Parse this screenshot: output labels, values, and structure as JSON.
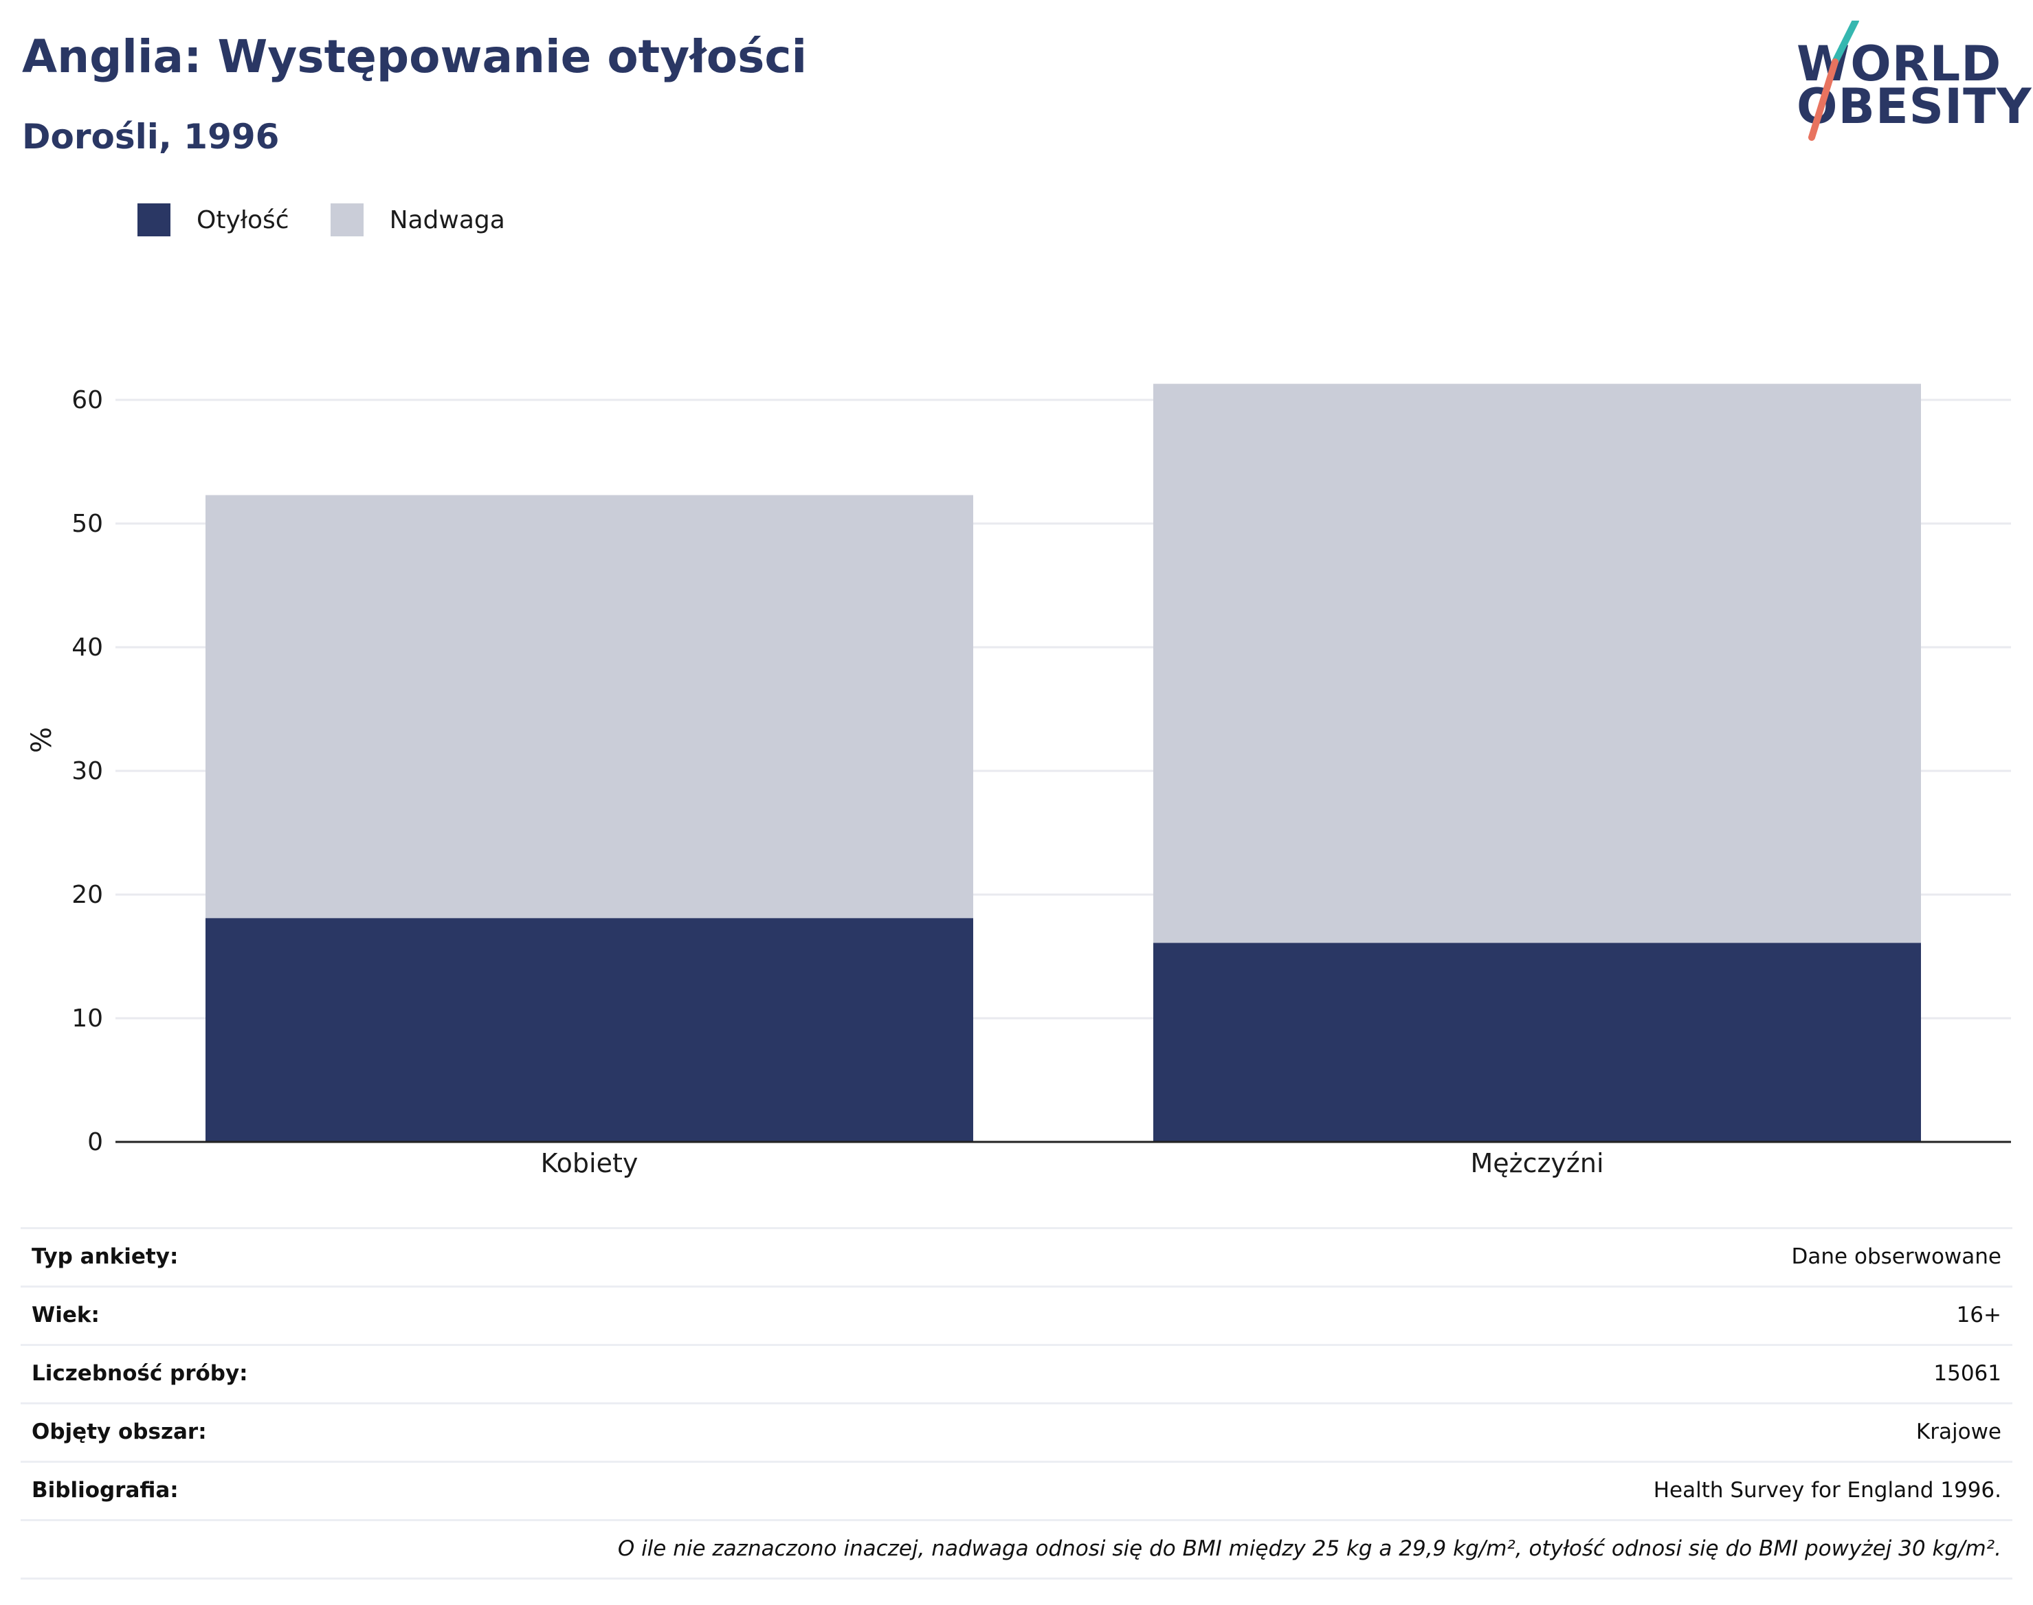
{
  "header": {
    "title": "Anglia: Występowanie otyłości",
    "subtitle": "Dorośli, 1996"
  },
  "logo": {
    "line1": "WORLD",
    "line2": "OBESITY"
  },
  "colors": {
    "obesity": "#2a3764",
    "overweight": "#cacdd8",
    "title": "#2a3764",
    "grid": "#e9eaef"
  },
  "chart_data": {
    "type": "bar",
    "stacked": true,
    "categories": [
      "Kobiety",
      "Mężczyźni"
    ],
    "series": [
      {
        "name": "Otyłość",
        "values": [
          18.1,
          16.1
        ]
      },
      {
        "name": "Nadwaga",
        "values": [
          34.2,
          45.2
        ]
      }
    ],
    "ylabel": "%",
    "ylim": [
      0,
      65
    ],
    "yticks": [
      0,
      10,
      20,
      30,
      40,
      50,
      60
    ],
    "grid": true,
    "legend": "top-left"
  },
  "info": [
    {
      "label": "Typ ankiety:",
      "value": "Dane obserwowane"
    },
    {
      "label": "Wiek:",
      "value": "16+"
    },
    {
      "label": "Liczebność próby:",
      "value": "15061"
    },
    {
      "label": "Objęty obszar:",
      "value": "Krajowe"
    },
    {
      "label": "Bibliografia:",
      "value": "Health Survey for England 1996."
    }
  ],
  "note": "O ile nie zaznaczono inaczej, nadwaga odnosi się do BMI między 25 kg a 29,9 kg/m², otyłość odnosi się do BMI powyżej 30 kg/m²."
}
